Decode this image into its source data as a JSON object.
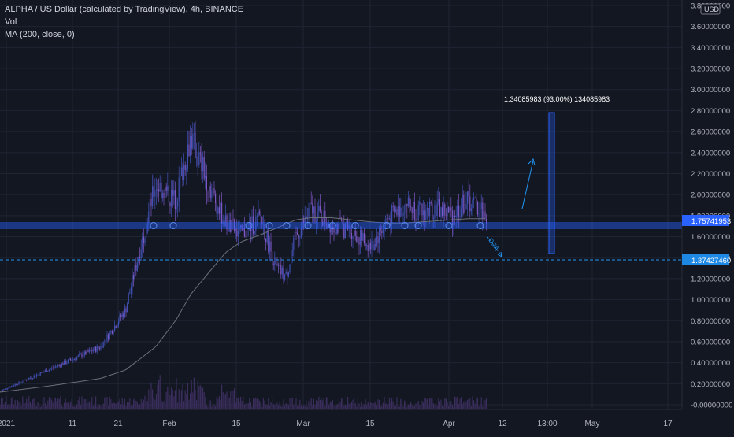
{
  "legend": {
    "title": "ALPHA / US Dollar (calculated by TradingView), 4h, BINANCE",
    "volume_label": "Vol",
    "ma_label": "MA (200, close, 0)"
  },
  "currency_badge": "USD",
  "price_axis": {
    "ticks": [
      "3.80000000",
      "3.60000000",
      "3.40000000",
      "3.20000000",
      "3.00000000",
      "2.80000000",
      "2.60000000",
      "2.40000000",
      "2.20000000",
      "2.00000000",
      "1.80000000",
      "1.60000000",
      "1.40000000",
      "1.20000000",
      "1.00000000",
      "0.80000000",
      "0.60000000",
      "0.40000000",
      "0.20000000",
      "-0.00000000"
    ],
    "current_price_label": "1.75741953",
    "line_price_label": "1.37427460"
  },
  "time_axis": {
    "ticks": [
      "2021",
      "11",
      "21",
      "Feb",
      "15",
      "Mar",
      "15",
      "Apr",
      "12",
      "13:00",
      "May",
      "17"
    ]
  },
  "measure_label": "1.34085983 (93.00%) 134085983",
  "drawing_text": "DCA",
  "colors": {
    "background": "#131722",
    "grid": "#1f2433",
    "candle": "#3f51b5",
    "candle_alt": "#7e57c2",
    "ma": "#6b6f7a",
    "support_band": "#2962ff",
    "dashed_line": "#2196f3",
    "volume": "#3b2d5c"
  },
  "chart_data": {
    "type": "line",
    "symbol": "ALPHA/USD",
    "interval": "4h",
    "exchange": "BINANCE",
    "ylim": [
      -0.05,
      3.83
    ],
    "x": [
      "2021-01-01",
      "2021-01-11",
      "2021-01-21",
      "2021-01-26",
      "2021-02-01",
      "2021-02-05",
      "2021-02-08",
      "2021-02-12",
      "2021-02-15",
      "2021-02-18",
      "2021-02-22",
      "2021-02-25",
      "2021-02-27",
      "2021-03-01",
      "2021-03-04",
      "2021-03-08",
      "2021-03-12",
      "2021-03-16",
      "2021-03-19",
      "2021-03-23",
      "2021-03-26",
      "2021-03-29",
      "2021-04-01",
      "2021-04-04",
      "2021-04-07",
      "2021-04-08"
    ],
    "close": [
      0.13,
      0.34,
      0.55,
      0.9,
      2.1,
      1.95,
      2.55,
      2.05,
      1.72,
      1.62,
      1.78,
      1.3,
      1.22,
      1.6,
      1.86,
      1.72,
      1.66,
      1.5,
      1.75,
      1.92,
      1.82,
      1.88,
      1.8,
      1.94,
      1.86,
      1.76
    ],
    "ma200": [
      0.12,
      0.18,
      0.25,
      0.33,
      0.55,
      0.8,
      1.05,
      1.28,
      1.45,
      1.55,
      1.62,
      1.68,
      1.72,
      1.76,
      1.78,
      1.78,
      1.76,
      1.74,
      1.73,
      1.73,
      1.74,
      1.75,
      1.76,
      1.77,
      1.77,
      1.77
    ],
    "levels": {
      "support": 1.72,
      "dashed": 1.3742746,
      "current": 1.75741953
    },
    "measure": {
      "low": 1.44,
      "high": 2.78,
      "label": "1.34085983 (93.00%) 134085983"
    }
  }
}
